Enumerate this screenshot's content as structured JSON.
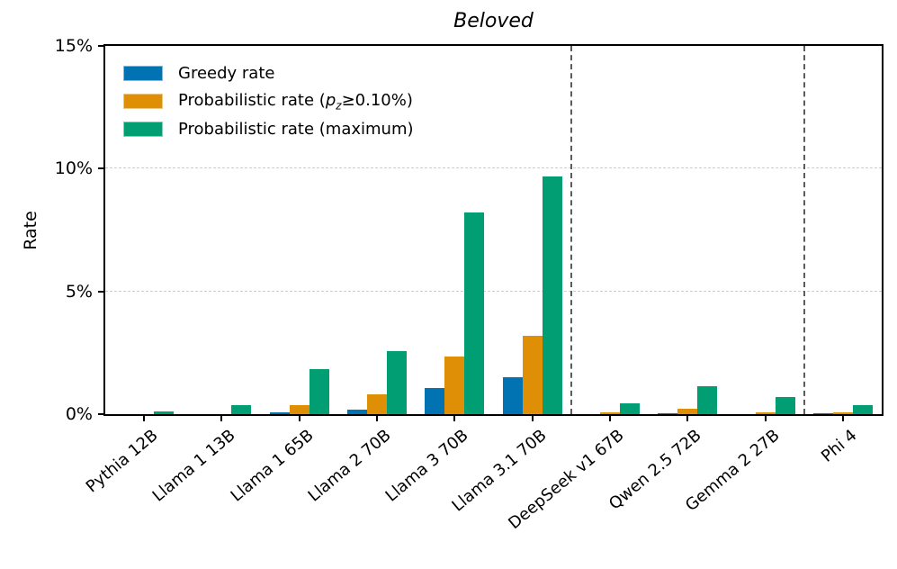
{
  "figure": {
    "title": "Beloved",
    "ylabel": "Rate"
  },
  "legend": {
    "items": [
      {
        "label": "Greedy rate",
        "color": "#0173b2"
      },
      {
        "label_prefix": "Probabilistic rate (",
        "label_var": "p",
        "label_sub": "z",
        "label_suffix": "≥0.10%)",
        "color": "#de8f05"
      },
      {
        "label": "Probabilistic rate (maximum)",
        "color": "#029e73"
      }
    ]
  },
  "chart_data": {
    "type": "bar",
    "title": "Beloved",
    "xlabel": "",
    "ylabel": "Rate",
    "ylim": [
      0,
      15
    ],
    "ytick_values": [
      0,
      5,
      10,
      15
    ],
    "ytick_labels": [
      "0%",
      "5%",
      "10%",
      "15%"
    ],
    "gridline_values": [
      5,
      10
    ],
    "grid": "horizontal dashed",
    "legend_position": "upper left",
    "categories": [
      "Pythia 12B",
      "Llama 1 13B",
      "Llama 1 65B",
      "Llama 2 70B",
      "Llama 3 70B",
      "Llama 3.1 70B",
      "DeepSeek v1 67B",
      "Qwen 2.5 72B",
      "Gemma 2 27B",
      "Phi 4"
    ],
    "series": [
      {
        "name": "Greedy rate",
        "color": "#0173b2",
        "values": [
          0,
          0,
          0.08,
          0.2,
          1.05,
          1.5,
          0,
          0.04,
          0,
          0.04
        ]
      },
      {
        "name": "Probabilistic rate (p_z≥0.10%)",
        "color": "#de8f05",
        "values": [
          0,
          0,
          0.37,
          0.8,
          2.35,
          3.2,
          0.06,
          0.21,
          0.09,
          0.09
        ]
      },
      {
        "name": "Probabilistic rate (maximum)",
        "color": "#029e73",
        "values": [
          0.1,
          0.35,
          1.85,
          2.55,
          8.2,
          9.7,
          0.45,
          1.15,
          0.7,
          0.35
        ]
      }
    ],
    "separators_after_category_index": [
      5,
      8
    ],
    "separator_style": "dashed gray vertical"
  }
}
